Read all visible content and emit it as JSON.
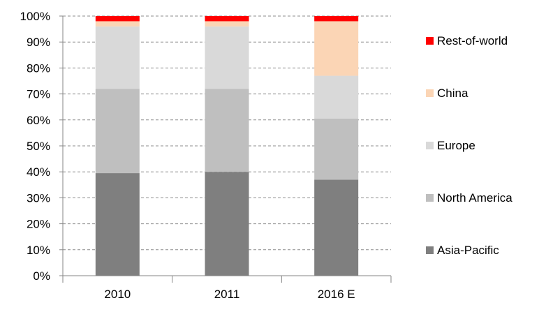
{
  "chart_data": {
    "type": "bar",
    "stacked": true,
    "normalized": true,
    "categories": [
      "2010",
      "2011",
      "2016 E"
    ],
    "series": [
      {
        "name": "Asia-Pacific",
        "color": "#7f7f7f",
        "values": [
          39.5,
          40.0,
          37.0
        ]
      },
      {
        "name": "North America",
        "color": "#bfbfbf",
        "values": [
          32.5,
          32.0,
          23.5
        ]
      },
      {
        "name": "Europe",
        "color": "#d9d9d9",
        "values": [
          24.0,
          24.0,
          16.5
        ]
      },
      {
        "name": "China",
        "color": "#fbd5b5",
        "values": [
          2.0,
          2.0,
          21.0
        ]
      },
      {
        "name": "Rest-of-world",
        "color": "#ff0000",
        "values": [
          2.0,
          2.0,
          2.0
        ]
      }
    ],
    "y_ticks": [
      "0%",
      "10%",
      "20%",
      "30%",
      "40%",
      "50%",
      "60%",
      "70%",
      "80%",
      "90%",
      "100%"
    ],
    "ylim": [
      0,
      100
    ],
    "grid": true,
    "grid_style": "dashed",
    "legend_position": "right",
    "title": "",
    "xlabel": "",
    "ylabel": ""
  }
}
